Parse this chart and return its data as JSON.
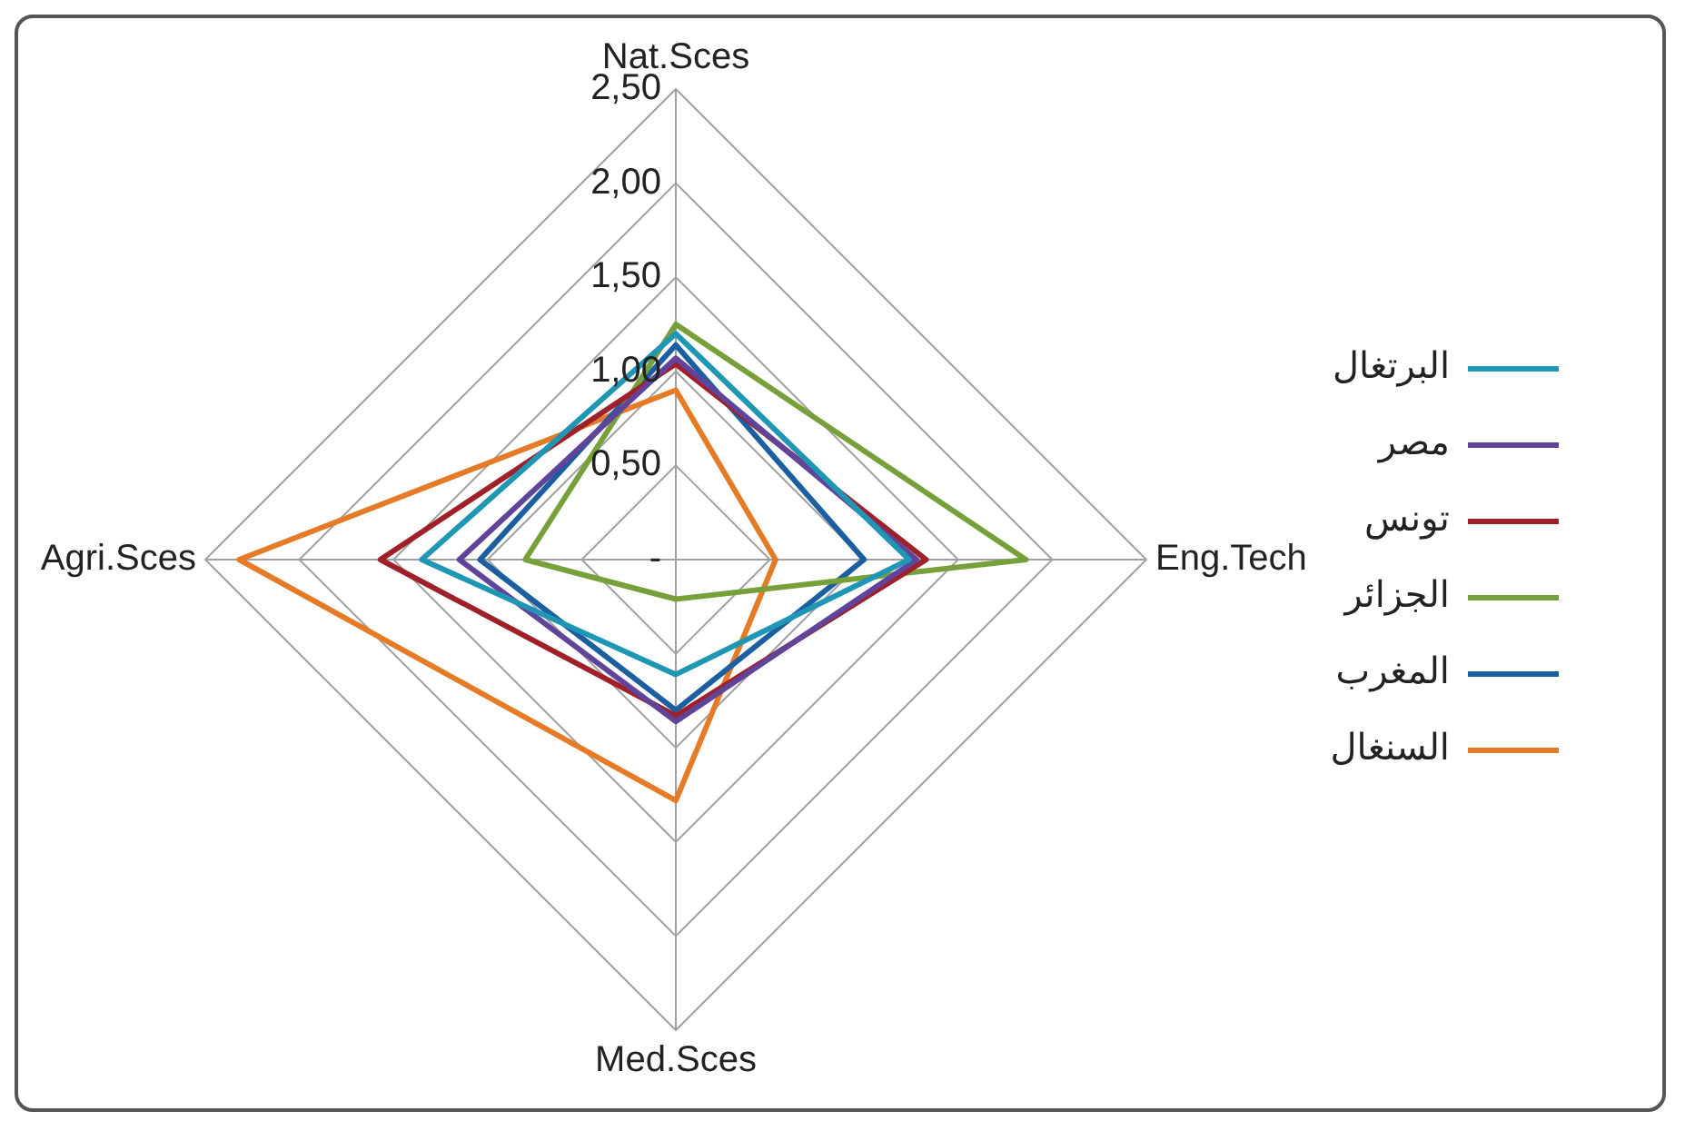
{
  "chart_data": {
    "type": "radar",
    "categories": [
      "Nat.Sces",
      "Eng.Tech",
      "Med.Sces",
      "Agri.Sces"
    ],
    "series": [
      {
        "name": "البرتغال",
        "color": "#1f96b4",
        "values": [
          1.2,
          1.24,
          0.61,
          1.35
        ]
      },
      {
        "name": "مصر",
        "color": "#60449a",
        "values": [
          1.07,
          1.28,
          0.86,
          1.15
        ]
      },
      {
        "name": "تونس",
        "color": "#a0202a",
        "values": [
          1.04,
          1.33,
          0.83,
          1.57
        ]
      },
      {
        "name": "الجزائر",
        "color": "#77a03a",
        "values": [
          1.25,
          1.86,
          0.21,
          0.8
        ]
      },
      {
        "name": "المغرب",
        "color": "#1b5fa0",
        "values": [
          1.14,
          1.0,
          0.8,
          1.04
        ]
      },
      {
        "name": "السنغال",
        "color": "#e57b26",
        "values": [
          0.9,
          0.53,
          1.28,
          2.32
        ]
      }
    ],
    "ylim": [
      0,
      2.5
    ],
    "yticks": [
      {
        "value": 0,
        "label": "-"
      },
      {
        "value": 0.5,
        "label": "0,50"
      },
      {
        "value": 1,
        "label": "1,00"
      },
      {
        "value": 1.5,
        "label": "1,50"
      },
      {
        "value": 2,
        "label": "2,00"
      },
      {
        "value": 2.5,
        "label": "2,50"
      }
    ],
    "grid": true,
    "legend": "right",
    "marker": "none",
    "line_style": "solid"
  }
}
